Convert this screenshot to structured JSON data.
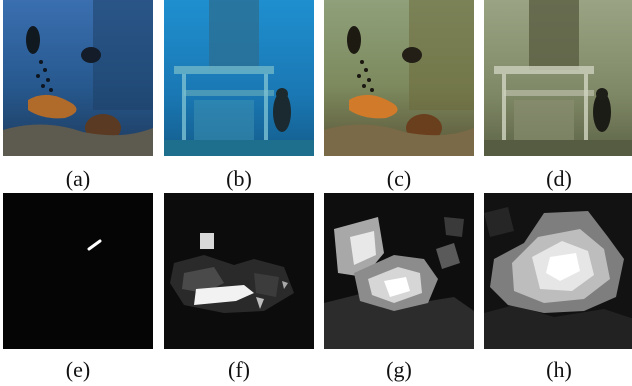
{
  "figure": {
    "panels": [
      {
        "id": "a",
        "caption": "(a)",
        "content": "underwater-photo-diver-reef"
      },
      {
        "id": "b",
        "caption": "(b)",
        "content": "underwater-photo-platform-diver"
      },
      {
        "id": "c",
        "caption": "(c)",
        "content": "enhanced-photo-diver-reef"
      },
      {
        "id": "d",
        "caption": "(d)",
        "content": "enhanced-photo-platform-diver"
      },
      {
        "id": "e",
        "caption": "(e)",
        "content": "saliency-map"
      },
      {
        "id": "f",
        "caption": "(f)",
        "content": "saliency-map"
      },
      {
        "id": "g",
        "caption": "(g)",
        "content": "saliency-map"
      },
      {
        "id": "h",
        "caption": "(h)",
        "content": "saliency-map"
      }
    ]
  }
}
